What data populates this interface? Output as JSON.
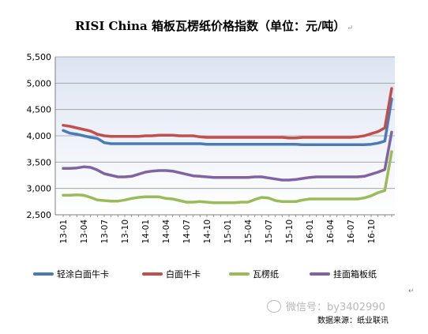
{
  "title": "RISI China 箱板瓦楞纸价格指数（单位：元/吨）",
  "title_mark": "↵",
  "watermark": "微信号：by3402990",
  "source": "数据来源：纸业联讯",
  "corner_mark": "↵",
  "chart_data": {
    "type": "line",
    "title": "RISI China 箱板瓦楞纸价格指数（单位：元/吨）",
    "xlabel": "",
    "ylabel": "",
    "ylim": [
      2500,
      5500
    ],
    "yticks": [
      "2,500",
      "3,000",
      "3,500",
      "4,000",
      "4,500",
      "5,000",
      "5,500"
    ],
    "xtick_labels": [
      "13-01",
      "13-04",
      "13-07",
      "13-10",
      "14-01",
      "14-04",
      "14-07",
      "14-10",
      "15-01",
      "15-04",
      "15-07",
      "15-10",
      "16-01",
      "16-04",
      "16-07",
      "16-10"
    ],
    "x_count": 49,
    "grid": "horizontal",
    "legend_position": "bottom",
    "colors": {
      "plot_background": "#dde4f2",
      "gridline": "#9a9a9a"
    },
    "series": [
      {
        "name": "轻涂白面牛卡",
        "color": "#4a7bb7",
        "values": [
          4100,
          4050,
          4030,
          4000,
          3970,
          3950,
          3870,
          3850,
          3850,
          3850,
          3850,
          3850,
          3850,
          3850,
          3850,
          3850,
          3850,
          3850,
          3850,
          3850,
          3850,
          3840,
          3840,
          3840,
          3840,
          3840,
          3840,
          3840,
          3840,
          3840,
          3840,
          3840,
          3840,
          3840,
          3840,
          3830,
          3830,
          3830,
          3830,
          3830,
          3830,
          3830,
          3830,
          3830,
          3830,
          3840,
          3860,
          3900,
          4700
        ]
      },
      {
        "name": "白面牛卡",
        "color": "#c0504d",
        "values": [
          4200,
          4180,
          4150,
          4120,
          4090,
          4030,
          4000,
          3990,
          3990,
          3990,
          3990,
          3990,
          4000,
          4000,
          4010,
          4010,
          4010,
          4000,
          4000,
          4000,
          3980,
          3970,
          3970,
          3970,
          3970,
          3970,
          3970,
          3970,
          3970,
          3970,
          3970,
          3970,
          3970,
          3960,
          3960,
          3970,
          3970,
          3970,
          3970,
          3970,
          3970,
          3970,
          3970,
          3980,
          4000,
          4040,
          4080,
          4150,
          4900
        ]
      },
      {
        "name": "瓦楞纸",
        "color": "#9bbb59",
        "values": [
          2870,
          2870,
          2880,
          2870,
          2830,
          2780,
          2770,
          2760,
          2760,
          2780,
          2810,
          2830,
          2840,
          2840,
          2840,
          2810,
          2800,
          2770,
          2740,
          2740,
          2750,
          2740,
          2730,
          2730,
          2730,
          2730,
          2740,
          2740,
          2790,
          2830,
          2820,
          2770,
          2750,
          2750,
          2750,
          2780,
          2800,
          2800,
          2800,
          2800,
          2800,
          2800,
          2800,
          2800,
          2820,
          2860,
          2920,
          2960,
          3700
        ]
      },
      {
        "name": "挂面箱板纸",
        "color": "#8064a2",
        "values": [
          3380,
          3380,
          3390,
          3410,
          3400,
          3350,
          3280,
          3250,
          3220,
          3220,
          3230,
          3270,
          3310,
          3330,
          3340,
          3340,
          3330,
          3300,
          3270,
          3240,
          3230,
          3220,
          3210,
          3210,
          3210,
          3210,
          3210,
          3210,
          3220,
          3220,
          3200,
          3180,
          3160,
          3160,
          3170,
          3190,
          3210,
          3220,
          3220,
          3220,
          3220,
          3220,
          3220,
          3220,
          3230,
          3270,
          3310,
          3360,
          4070
        ]
      }
    ]
  }
}
